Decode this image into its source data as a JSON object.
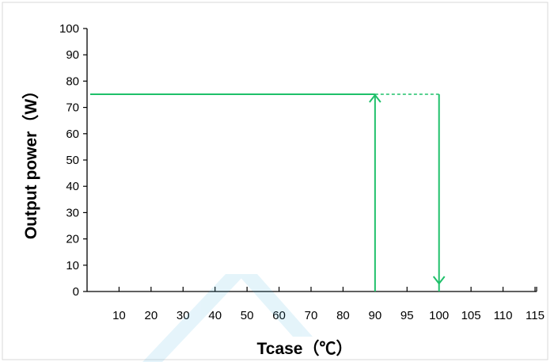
{
  "chart_data": {
    "type": "line",
    "xlabel": "Tcase（℃）",
    "ylabel": "Output power（W）",
    "x_tick_labels": [
      "10",
      "20",
      "30",
      "40",
      "50",
      "60",
      "70",
      "80",
      "90",
      "95",
      "100",
      "105",
      "110",
      "115"
    ],
    "y_ticks": [
      0,
      10,
      20,
      30,
      40,
      50,
      60,
      70,
      80,
      90,
      100
    ],
    "ylim": [
      0,
      100
    ],
    "grid": false,
    "series": [
      {
        "style": "solid",
        "points": [
          {
            "x": "0",
            "y": 75
          },
          {
            "x": "90",
            "y": 75
          }
        ]
      },
      {
        "style": "solid-arrow-up",
        "points": [
          {
            "x": "90",
            "y": 0
          },
          {
            "x": "90",
            "y": 75
          }
        ]
      },
      {
        "style": "dashed",
        "points": [
          {
            "x": "90",
            "y": 75
          },
          {
            "x": "100",
            "y": 75
          }
        ]
      },
      {
        "style": "solid-arrow-down",
        "points": [
          {
            "x": "100",
            "y": 75
          },
          {
            "x": "100",
            "y": 0
          }
        ]
      }
    ],
    "colors": {
      "line": "#1FC06A",
      "axis": "#000000",
      "frame": "#D9D9D9",
      "watermark": "#2AA8DE"
    }
  }
}
